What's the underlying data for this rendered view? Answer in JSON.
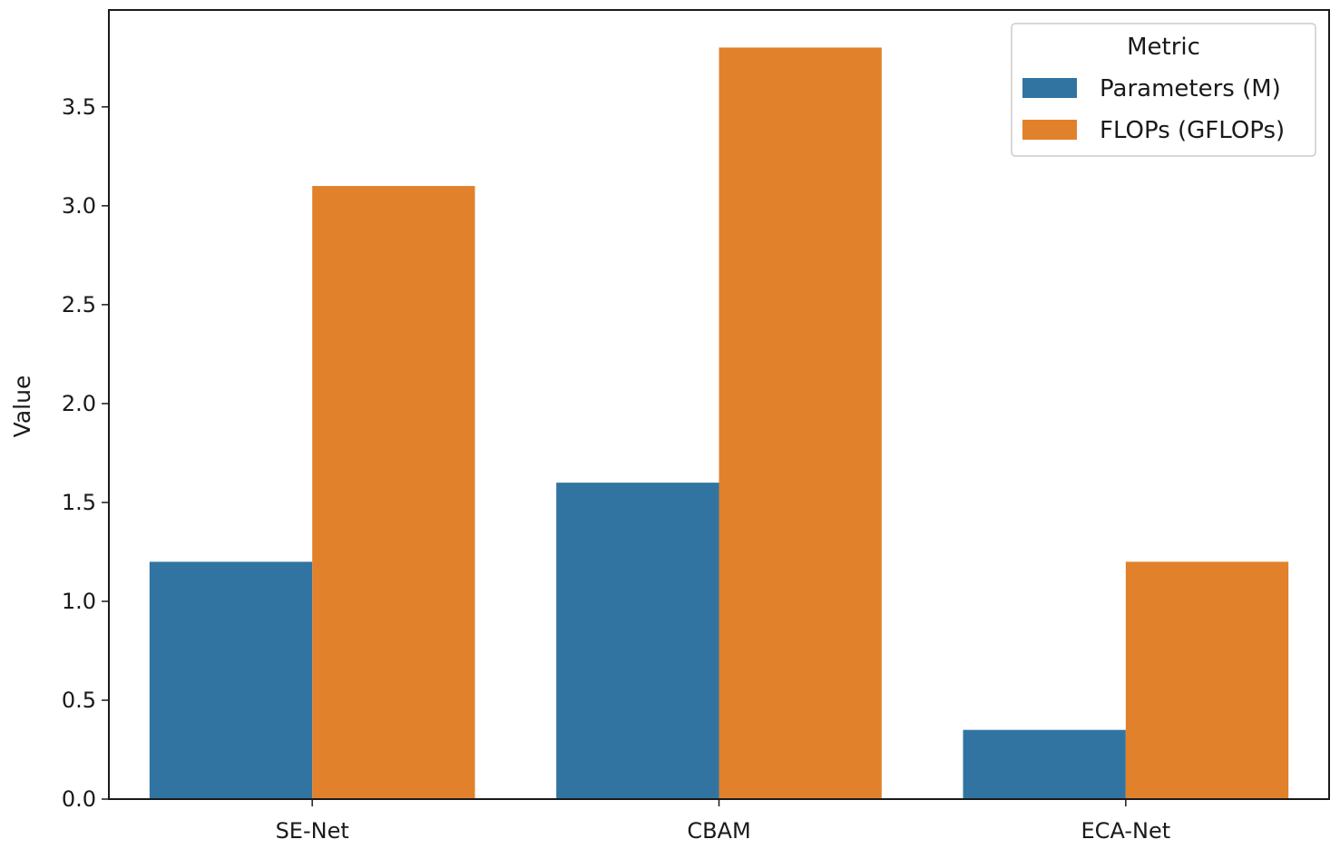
{
  "chart_data": {
    "type": "bar",
    "categories": [
      "SE-Net",
      "CBAM",
      "ECA-Net"
    ],
    "series": [
      {
        "name": "Parameters (M)",
        "values": [
          1.2,
          1.6,
          0.35
        ],
        "color": "#3274a1"
      },
      {
        "name": "FLOPs (GFLOPs)",
        "values": [
          3.1,
          3.8,
          1.2
        ],
        "color": "#e1812c"
      }
    ],
    "title": "",
    "xlabel": "",
    "ylabel": "Value",
    "ylim": [
      0,
      3.99
    ],
    "yticks": [
      "0.0",
      "0.5",
      "1.0",
      "1.5",
      "2.0",
      "2.5",
      "3.0",
      "3.5"
    ],
    "legend": {
      "title": "Metric",
      "position": "top-right"
    },
    "grid": false
  }
}
